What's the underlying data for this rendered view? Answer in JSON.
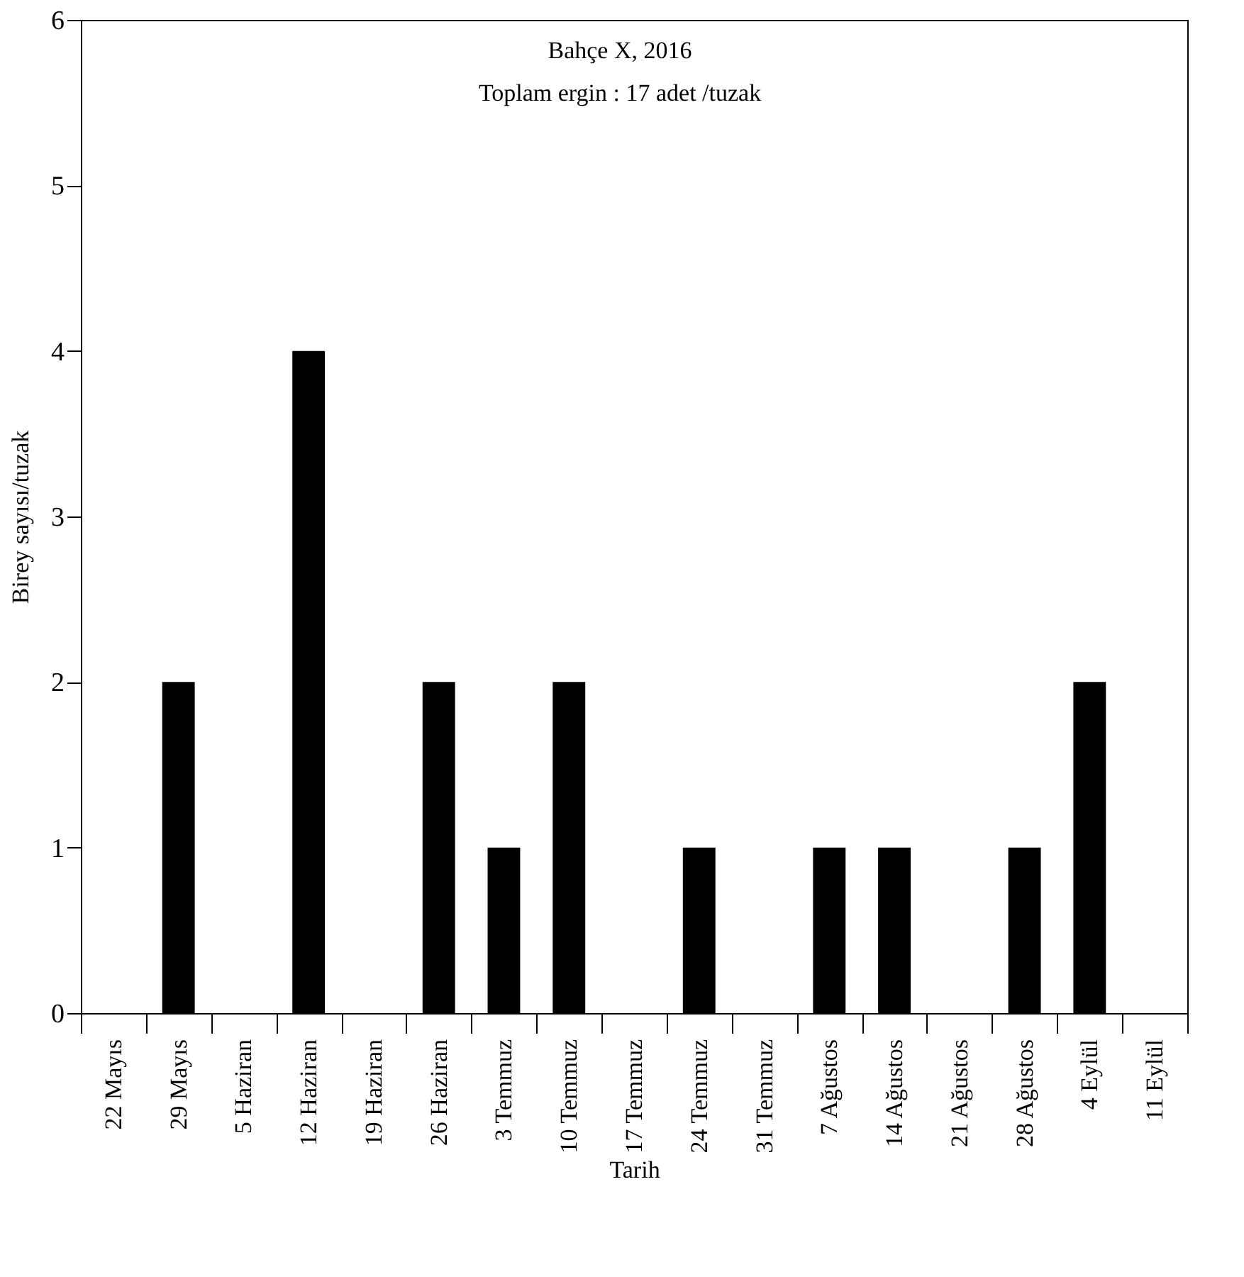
{
  "chart_data": {
    "type": "bar",
    "title": "Bahçe X, 2016",
    "subtitle": "Toplam ergin : 17 adet /tuzak",
    "xlabel": "Tarih",
    "ylabel": "Birey sayısı/tuzak",
    "categories": [
      "22 Mayıs",
      "29 Mayıs",
      "5 Haziran",
      "12 Haziran",
      "19 Haziran",
      "26 Haziran",
      "3 Temmuz",
      "10 Temmuz",
      "17 Temmuz",
      "24 Temmuz",
      "31 Temmuz",
      "7 Ağustos",
      "14 Ağustos",
      "21 Ağustos",
      "28 Ağustos",
      "4 Eylül",
      "11 Eylül"
    ],
    "values": [
      0,
      2,
      0,
      4,
      0,
      2,
      1,
      2,
      0,
      1,
      0,
      1,
      1,
      0,
      1,
      2,
      0
    ],
    "color": "#000000",
    "ylim": [
      0,
      6
    ],
    "yticks": [
      0,
      1,
      2,
      3,
      4,
      5,
      6
    ]
  }
}
